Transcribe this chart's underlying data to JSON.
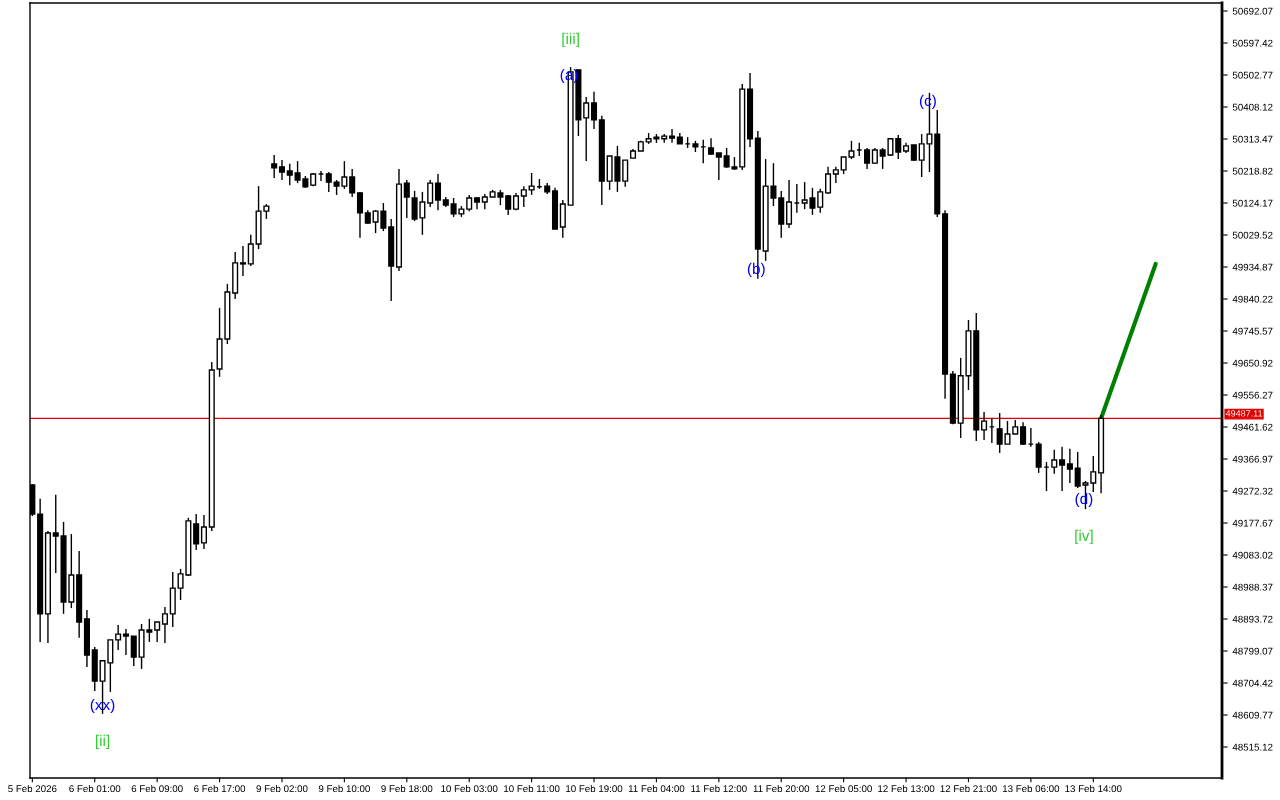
{
  "chart_data": {
    "type": "candlestick",
    "categories": [
      "5 Feb 2026",
      null,
      null,
      null,
      null,
      null,
      null,
      null,
      "6 Feb 01:00",
      null,
      null,
      null,
      null,
      null,
      null,
      null,
      "6 Feb 09:00",
      null,
      null,
      null,
      null,
      null,
      null,
      null,
      "6 Feb 17:00",
      null,
      null,
      null,
      null,
      null,
      null,
      null,
      "9 Feb 02:00",
      null,
      null,
      null,
      null,
      null,
      null,
      null,
      "9 Feb 10:00",
      null,
      null,
      null,
      null,
      null,
      null,
      null,
      "9 Feb 18:00",
      null,
      null,
      null,
      null,
      null,
      null,
      null,
      "10 Feb 03:00",
      null,
      null,
      null,
      null,
      null,
      null,
      null,
      "10 Feb 11:00",
      null,
      null,
      null,
      null,
      null,
      null,
      null,
      "10 Feb 19:00",
      null,
      null,
      null,
      null,
      null,
      null,
      null,
      "11 Feb 04:00",
      null,
      null,
      null,
      null,
      null,
      null,
      null,
      "11 Feb 12:00",
      null,
      null,
      null,
      null,
      null,
      null,
      null,
      "11 Feb 20:00",
      null,
      null,
      null,
      null,
      null,
      null,
      null,
      "12 Feb 05:00",
      null,
      null,
      null,
      null,
      null,
      null,
      null,
      "12 Feb 13:00",
      null,
      null,
      null,
      null,
      null,
      null,
      null,
      "12 Feb 21:00",
      null,
      null,
      null,
      null,
      null,
      null,
      null,
      "13 Feb 06:00",
      null,
      null,
      null,
      null,
      null,
      null,
      null,
      "13 Feb 14:00",
      null,
      null,
      null,
      null,
      null,
      null,
      null,
      null,
      null,
      null,
      null,
      null,
      null,
      null,
      null,
      null
    ],
    "ohlc": [
      [
        49290,
        49293,
        49198,
        49204
      ],
      [
        49204,
        49249,
        48826,
        48909
      ],
      [
        48909,
        49154,
        48823,
        49148
      ],
      [
        49148,
        49261,
        49030,
        49139
      ],
      [
        49139,
        49181,
        48909,
        48944
      ],
      [
        48944,
        49145,
        48926,
        49024
      ],
      [
        49024,
        49095,
        48838,
        48885
      ],
      [
        48894,
        48920,
        48752,
        48787
      ],
      [
        48802,
        48811,
        48681,
        48710
      ],
      [
        48710,
        48770,
        48613,
        48770
      ],
      [
        48764,
        48832,
        48678,
        48832
      ],
      [
        48832,
        48876,
        48802,
        48849
      ],
      [
        48849,
        48864,
        48787,
        48843
      ],
      [
        48843,
        48843,
        48755,
        48781
      ],
      [
        48781,
        48879,
        48746,
        48861
      ],
      [
        48861,
        48894,
        48826,
        48855
      ],
      [
        48861,
        48885,
        48826,
        48885
      ],
      [
        48879,
        48929,
        48823,
        48909
      ],
      [
        48909,
        49033,
        48870,
        48985
      ],
      [
        48985,
        49042,
        48950,
        49027
      ],
      [
        49024,
        49193,
        49021,
        49184
      ],
      [
        49175,
        49204,
        49098,
        49116
      ],
      [
        49119,
        49201,
        49101,
        49166
      ],
      [
        49166,
        49654,
        49154,
        49630
      ],
      [
        49633,
        49814,
        49610,
        49722
      ],
      [
        49722,
        49885,
        49707,
        49861
      ],
      [
        49858,
        49979,
        49840,
        49947
      ],
      [
        49944,
        49997,
        49908,
        49947
      ],
      [
        49944,
        50030,
        49938,
        50003
      ],
      [
        50003,
        50174,
        49988,
        50100
      ],
      [
        50100,
        50121,
        50077,
        50115
      ],
      [
        50240,
        50266,
        50198,
        50228
      ],
      [
        50231,
        50251,
        50192,
        50216
      ],
      [
        50219,
        50240,
        50177,
        50207
      ],
      [
        50213,
        50248,
        50183,
        50192
      ],
      [
        50195,
        50204,
        50169,
        50172
      ],
      [
        50177,
        50213,
        50174,
        50210
      ],
      [
        50210,
        50219,
        50189,
        50210
      ],
      [
        50210,
        50216,
        50157,
        50186
      ],
      [
        50186,
        50192,
        50148,
        50174
      ],
      [
        50174,
        50248,
        50166,
        50201
      ],
      [
        50201,
        50225,
        50142,
        50154
      ],
      [
        50154,
        50157,
        50021,
        50095
      ],
      [
        50095,
        50103,
        50062,
        50065
      ],
      [
        50068,
        50103,
        50035,
        50100
      ],
      [
        50100,
        50124,
        50041,
        50050
      ],
      [
        50053,
        50077,
        49834,
        49938
      ],
      [
        49935,
        50225,
        49923,
        50180
      ],
      [
        50183,
        50192,
        50080,
        50142
      ],
      [
        50139,
        50160,
        50071,
        50077
      ],
      [
        50080,
        50157,
        50030,
        50127
      ],
      [
        50124,
        50192,
        50112,
        50183
      ],
      [
        50183,
        50210,
        50103,
        50133
      ],
      [
        50133,
        50142,
        50112,
        50118
      ],
      [
        50121,
        50139,
        50083,
        50092
      ],
      [
        50092,
        50115,
        50083,
        50106
      ],
      [
        50106,
        50148,
        50100,
        50139
      ],
      [
        50139,
        50142,
        50106,
        50127
      ],
      [
        50127,
        50151,
        50106,
        50142
      ],
      [
        50142,
        50163,
        50142,
        50157
      ],
      [
        50154,
        50163,
        50118,
        50142
      ],
      [
        50145,
        50148,
        50089,
        50106
      ],
      [
        50106,
        50154,
        50103,
        50145
      ],
      [
        50145,
        50174,
        50112,
        50163
      ],
      [
        50163,
        50213,
        50148,
        50174
      ],
      [
        50172,
        50195,
        50166,
        50172
      ],
      [
        50174,
        50183,
        50151,
        50157
      ],
      [
        50160,
        50169,
        50047,
        50047
      ],
      [
        50053,
        50133,
        50021,
        50121
      ],
      [
        50118,
        50526,
        50118,
        50512
      ],
      [
        50518,
        50518,
        50322,
        50370
      ],
      [
        50376,
        50438,
        50248,
        50420
      ],
      [
        50420,
        50453,
        50343,
        50370
      ],
      [
        50370,
        50382,
        50118,
        50189
      ],
      [
        50189,
        50263,
        50163,
        50263
      ],
      [
        50260,
        50293,
        50157,
        50189
      ],
      [
        50189,
        50251,
        50172,
        50251
      ],
      [
        50257,
        50284,
        50257,
        50278
      ],
      [
        50278,
        50308,
        50278,
        50305
      ],
      [
        50305,
        50331,
        50299,
        50314
      ],
      [
        50319,
        50328,
        50302,
        50314
      ],
      [
        50314,
        50328,
        50302,
        50322
      ],
      [
        50322,
        50343,
        50302,
        50316
      ],
      [
        50319,
        50331,
        50299,
        50299
      ],
      [
        50299,
        50319,
        50287,
        50299
      ],
      [
        50299,
        50308,
        50275,
        50290
      ],
      [
        50290,
        50311,
        50242,
        50290
      ],
      [
        50287,
        50316,
        50266,
        50269
      ],
      [
        50272,
        50272,
        50192,
        50260
      ],
      [
        50263,
        50287,
        50228,
        50231
      ],
      [
        50231,
        50260,
        50222,
        50225
      ],
      [
        50231,
        50476,
        50222,
        50461
      ],
      [
        50461,
        50509,
        50290,
        50314
      ],
      [
        50316,
        50337,
        49900,
        49988
      ],
      [
        49982,
        50254,
        49953,
        50174
      ],
      [
        50174,
        50242,
        50115,
        50139
      ],
      [
        50139,
        50160,
        50021,
        50062
      ],
      [
        50062,
        50192,
        50050,
        50127
      ],
      [
        50124,
        50180,
        50095,
        50124
      ],
      [
        50124,
        50186,
        50106,
        50133
      ],
      [
        50139,
        50169,
        50089,
        50109
      ],
      [
        50112,
        50166,
        50095,
        50157
      ],
      [
        50154,
        50231,
        50151,
        50210
      ],
      [
        50210,
        50231,
        50183,
        50222
      ],
      [
        50222,
        50260,
        50210,
        50260
      ],
      [
        50260,
        50308,
        50254,
        50278
      ],
      [
        50281,
        50302,
        50263,
        50281
      ],
      [
        50281,
        50287,
        50225,
        50242
      ],
      [
        50242,
        50287,
        50240,
        50281
      ],
      [
        50281,
        50287,
        50225,
        50263
      ],
      [
        50266,
        50316,
        50263,
        50314
      ],
      [
        50314,
        50325,
        50254,
        50275
      ],
      [
        50278,
        50302,
        50272,
        50293
      ],
      [
        50296,
        50296,
        50248,
        50251
      ],
      [
        50251,
        50328,
        50201,
        50299
      ],
      [
        50299,
        50450,
        50216,
        50328
      ],
      [
        50328,
        50399,
        50083,
        50092
      ],
      [
        50092,
        50103,
        49545,
        49618
      ],
      [
        49618,
        49627,
        49470,
        49473
      ],
      [
        49473,
        49666,
        49429,
        49613
      ],
      [
        49613,
        49778,
        49571,
        49746
      ],
      [
        49746,
        49799,
        49420,
        49453
      ],
      [
        49453,
        49506,
        49423,
        49479
      ],
      [
        49462,
        49488,
        49414,
        49462
      ],
      [
        49456,
        49503,
        49385,
        49411
      ],
      [
        49411,
        49479,
        49411,
        49441
      ],
      [
        49441,
        49482,
        49441,
        49462
      ],
      [
        49462,
        49476,
        49408,
        49411
      ],
      [
        49411,
        49459,
        49403,
        49411
      ],
      [
        49411,
        49417,
        49326,
        49343
      ],
      [
        49343,
        49358,
        49272,
        49343
      ],
      [
        49343,
        49394,
        49323,
        49364
      ],
      [
        49364,
        49403,
        49272,
        49349
      ],
      [
        49352,
        49397,
        49296,
        49337
      ],
      [
        49340,
        49388,
        49281,
        49287
      ],
      [
        49290,
        49302,
        49219,
        49296
      ],
      [
        49296,
        49376,
        49269,
        49329
      ],
      [
        49326,
        49497,
        49266,
        49487
      ],
      null,
      null,
      null,
      null,
      null,
      null,
      null,
      null,
      null,
      null,
      null,
      null,
      null,
      null,
      null
    ],
    "series": [
      {
        "type": "line",
        "color": "#008000",
        "values": [
          null,
          null,
          null,
          null,
          null,
          null,
          null,
          null,
          null,
          null,
          null,
          null,
          null,
          null,
          null,
          null,
          null,
          null,
          null,
          null,
          null,
          null,
          null,
          null,
          null,
          null,
          null,
          null,
          null,
          null,
          null,
          null,
          null,
          null,
          null,
          null,
          null,
          null,
          null,
          null,
          null,
          null,
          null,
          null,
          null,
          null,
          null,
          null,
          null,
          null,
          null,
          null,
          null,
          null,
          null,
          null,
          null,
          null,
          null,
          null,
          null,
          null,
          null,
          null,
          null,
          null,
          null,
          null,
          null,
          null,
          null,
          null,
          null,
          null,
          null,
          null,
          null,
          null,
          null,
          null,
          null,
          null,
          null,
          null,
          null,
          null,
          null,
          null,
          null,
          null,
          null,
          null,
          null,
          null,
          null,
          null,
          null,
          null,
          null,
          null,
          null,
          null,
          null,
          null,
          null,
          null,
          null,
          null,
          null,
          null,
          null,
          null,
          null,
          null,
          null,
          null,
          null,
          null,
          null,
          null,
          null,
          null,
          null,
          null,
          null,
          null,
          null,
          null,
          null,
          null,
          null,
          null,
          null,
          null,
          null,
          null,
          null,
          49487,
          null,
          null,
          null,
          null,
          null,
          null,
          49944,
          null,
          null,
          null,
          null,
          null,
          null,
          null,
          null
        ]
      }
    ],
    "ylim": [
      48423.4,
      50715.7
    ],
    "yticks": [
      48515.12,
      48609.77,
      48704.42,
      48799.07,
      48893.72,
      48988.37,
      49083.02,
      49177.67,
      49272.32,
      49366.97,
      49461.62,
      49556.27,
      49650.92,
      49745.57,
      49840.22,
      49934.87,
      50029.52,
      50124.17,
      50218.82,
      50313.47,
      50408.12,
      50502.77,
      50597.42,
      50692.07
    ],
    "ref_lines": [
      {
        "axis": "y",
        "value": 49487.11,
        "label": "49487.11",
        "color": "#e00000"
      }
    ],
    "annotations": [
      "[ii]",
      "(xx)",
      "[iii]",
      "(a)",
      "(b)",
      "(c)",
      "(d)",
      "[iv]"
    ]
  }
}
